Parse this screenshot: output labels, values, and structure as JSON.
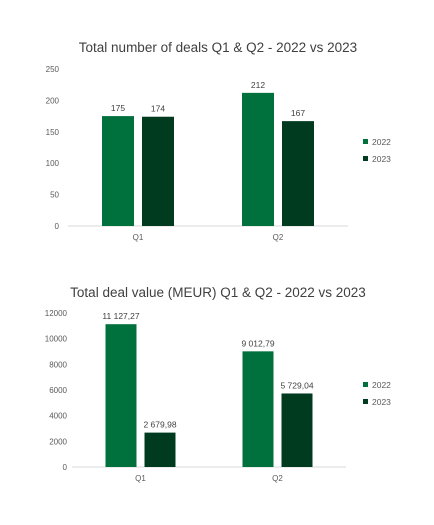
{
  "chart_data": [
    {
      "type": "bar",
      "title": "Total number of deals Q1 & Q2 - 2022 vs 2023",
      "categories": [
        "Q1",
        "Q2"
      ],
      "series": [
        {
          "name": "2022",
          "values": [
            175,
            212
          ],
          "labels": [
            "175",
            "212"
          ],
          "color": "#00703c"
        },
        {
          "name": "2023",
          "values": [
            174,
            167
          ],
          "labels": [
            "174",
            "167"
          ],
          "color": "#003b1f"
        }
      ],
      "ylim": [
        0,
        250
      ],
      "yticks": [
        "0",
        "50",
        "100",
        "150",
        "200",
        "250"
      ],
      "grid": false,
      "legend": "right"
    },
    {
      "type": "bar",
      "title": "Total deal value (MEUR) Q1 & Q2 - 2022 vs 2023",
      "categories": [
        "Q1",
        "Q2"
      ],
      "series": [
        {
          "name": "2022",
          "values": [
            11127.27,
            9012.79
          ],
          "labels": [
            "11 127,27",
            "9 012,79"
          ],
          "color": "#00703c"
        },
        {
          "name": "2023",
          "values": [
            2679.98,
            5729.04
          ],
          "labels": [
            "2 679,98",
            "5 729,04"
          ],
          "color": "#003b1f"
        }
      ],
      "ylim": [
        0,
        12000
      ],
      "yticks": [
        "0",
        "2000",
        "4000",
        "6000",
        "8000",
        "10000",
        "12000"
      ],
      "grid": false,
      "legend": "right"
    }
  ]
}
